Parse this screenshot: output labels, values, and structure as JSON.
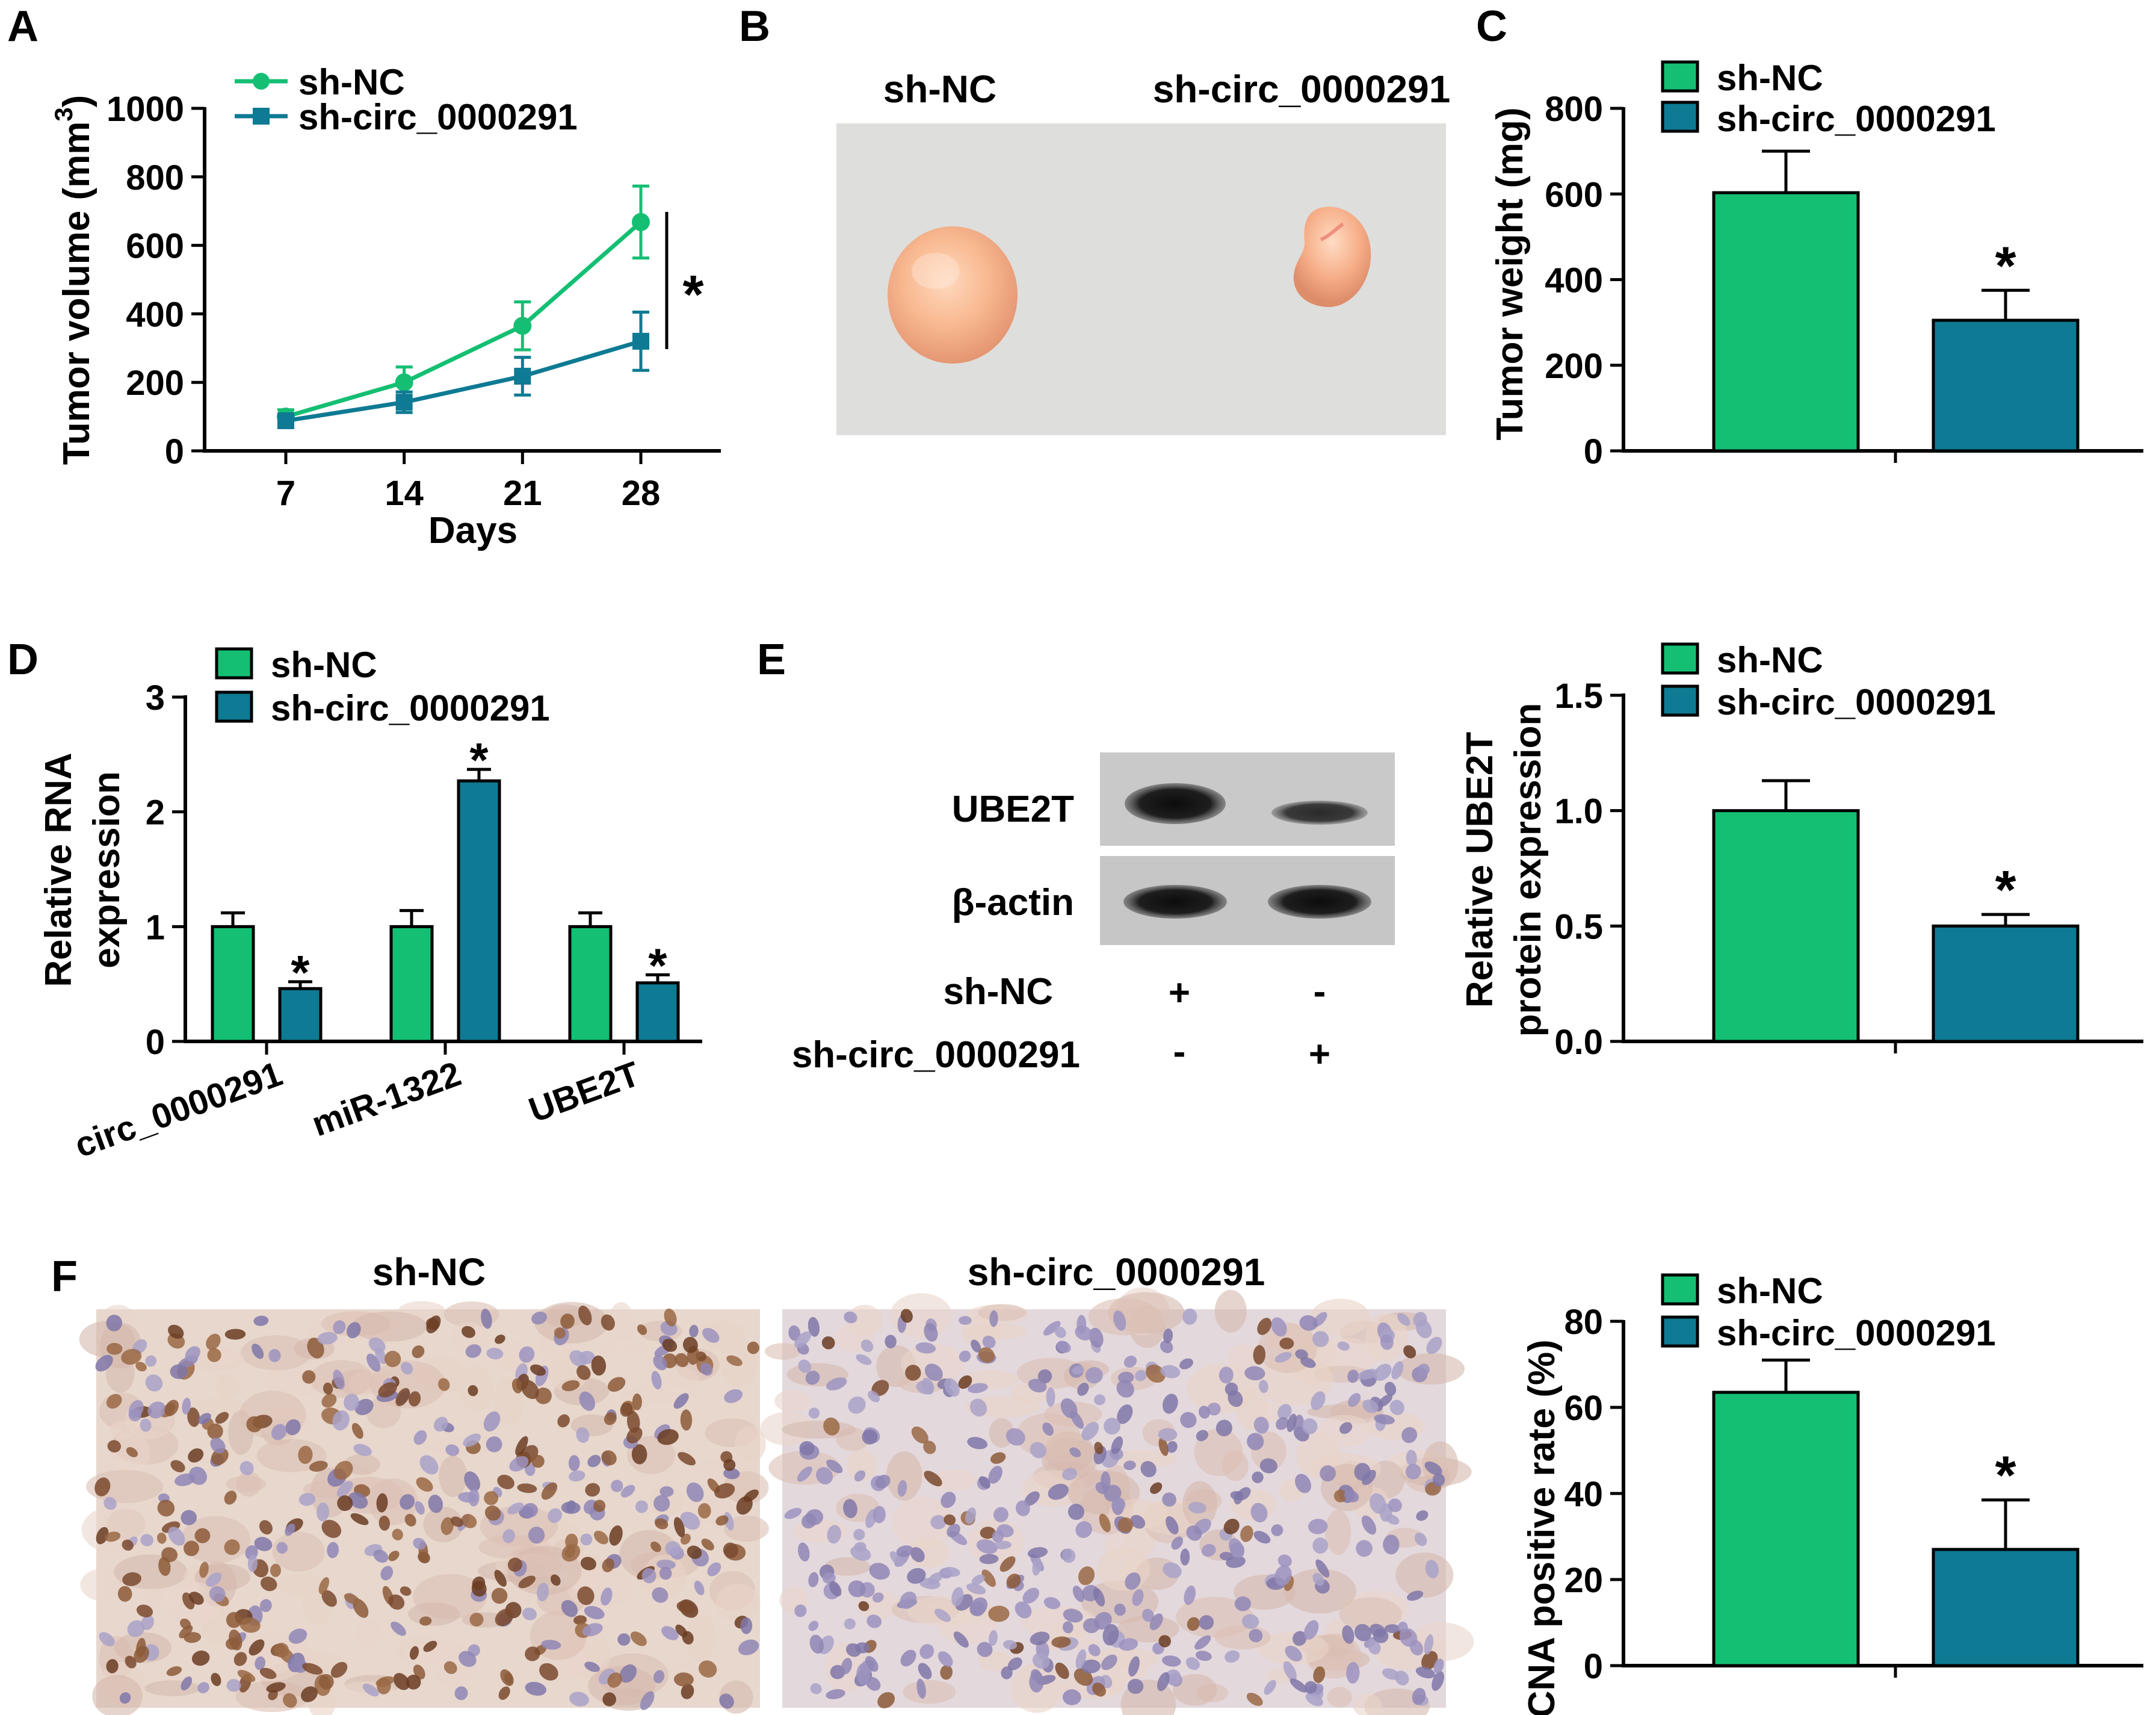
{
  "colors": {
    "ctrl": "#14BF73",
    "kd": "#0E7A93",
    "axis": "#000000"
  },
  "panels": {
    "A": "A",
    "B": "B",
    "C": "C",
    "D": "D",
    "E": "E",
    "F": "F"
  },
  "legend": {
    "ctrl": "sh-NC",
    "kd": "sh-circ_0000291"
  },
  "sig_mark": "*",
  "chart_data": [
    {
      "id": "A",
      "type": "line",
      "xlabel": "Days",
      "ylabel": "Tumor volume (mm",
      "ylabel_sup": "3",
      "ylabel_close": ")",
      "x": [
        7,
        14,
        21,
        28
      ],
      "ylim": [
        0,
        1000
      ],
      "yticks": [
        0,
        200,
        400,
        600,
        800,
        1000
      ],
      "series": [
        {
          "name": "sh-NC",
          "values": [
            100,
            200,
            365,
            668
          ],
          "err": [
            20,
            45,
            70,
            105
          ]
        },
        {
          "name": "sh-circ_0000291",
          "values": [
            88,
            142,
            218,
            320
          ],
          "err": [
            15,
            30,
            55,
            85
          ]
        }
      ],
      "annotation": "*"
    },
    {
      "id": "C",
      "type": "bar",
      "ylabel": "Tumor weight (mg)",
      "ylim": [
        0,
        800
      ],
      "yticks": [
        0,
        200,
        400,
        600,
        800
      ],
      "series": [
        {
          "name": "sh-NC",
          "values": [
            603
          ],
          "err": [
            97
          ]
        },
        {
          "name": "sh-circ_0000291",
          "values": [
            305
          ],
          "err": [
            70
          ]
        }
      ],
      "annotation": "*"
    },
    {
      "id": "D",
      "type": "bar",
      "ylabel": [
        "Relative RNA",
        "expression"
      ],
      "ylim": [
        0,
        3
      ],
      "yticks": [
        0,
        1,
        2,
        3
      ],
      "categories": [
        "circ_0000291",
        "miR-1322",
        "UBE2T"
      ],
      "series": [
        {
          "name": "sh-NC",
          "values": [
            1.0,
            1.0,
            1.0
          ],
          "err": [
            0.12,
            0.14,
            0.12
          ]
        },
        {
          "name": "sh-circ_0000291",
          "values": [
            0.46,
            2.27,
            0.51
          ],
          "err": [
            0.06,
            0.1,
            0.07
          ]
        }
      ],
      "annotation": "*"
    },
    {
      "id": "E",
      "type": "bar",
      "ylabel": [
        "Relative UBE2T",
        "protein expression"
      ],
      "ylim": [
        0,
        1.5
      ],
      "yticks": [
        "0.0",
        "0.5",
        "1.0",
        "1.5"
      ],
      "series": [
        {
          "name": "sh-NC",
          "values": [
            1.0
          ],
          "err": [
            0.13
          ]
        },
        {
          "name": "sh-circ_0000291",
          "values": [
            0.5
          ],
          "err": [
            0.05
          ]
        }
      ],
      "annotation": "*"
    },
    {
      "id": "F",
      "type": "bar",
      "ylabel": "PCNA positive rate (%)",
      "ylim": [
        0,
        80
      ],
      "yticks": [
        0,
        20,
        40,
        60,
        80
      ],
      "series": [
        {
          "name": "sh-NC",
          "values": [
            63.5
          ],
          "err": [
            7.5
          ]
        },
        {
          "name": "sh-circ_0000291",
          "values": [
            27
          ],
          "err": [
            11.5
          ]
        }
      ],
      "annotation": "*"
    }
  ],
  "panel_b": {
    "labels": [
      "sh-NC",
      "sh-circ_0000291"
    ]
  },
  "western": {
    "bands": [
      "UBE2T",
      "β-actin"
    ],
    "rows": [
      {
        "label": "sh-NC",
        "marks": [
          "+",
          "-"
        ]
      },
      {
        "label": "sh-circ_0000291",
        "marks": [
          "-",
          "+"
        ]
      }
    ]
  },
  "panel_f": {
    "labels": [
      "sh-NC",
      "sh-circ_0000291"
    ]
  }
}
